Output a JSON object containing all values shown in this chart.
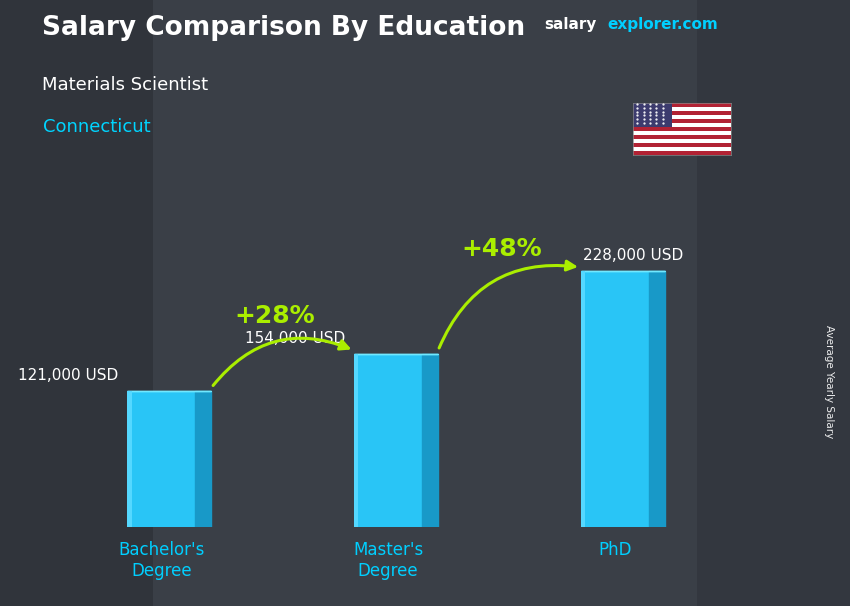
{
  "title": "Salary Comparison By Education",
  "subtitle": "Materials Scientist",
  "location": "Connecticut",
  "categories": [
    "Bachelor's\nDegree",
    "Master's\nDegree",
    "PhD"
  ],
  "values": [
    121000,
    154000,
    228000
  ],
  "value_labels": [
    "121,000 USD",
    "154,000 USD",
    "228,000 USD"
  ],
  "bar_color_front": "#29C5F6",
  "bar_color_left": "#55D8FF",
  "bar_color_right": "#1899C8",
  "bar_color_top": "#70E8FF",
  "bar_width": 0.3,
  "bar_depth": 0.07,
  "background_color": "#3a3f47",
  "title_color": "#FFFFFF",
  "subtitle_color": "#FFFFFF",
  "location_color": "#00D4FF",
  "value_label_color": "#FFFFFF",
  "ylabel": "Average Yearly Salary",
  "pct_labels": [
    "+28%",
    "+48%"
  ],
  "pct_color": "#AAEE00",
  "arrow_color": "#AAEE00",
  "brand_salary": "salary",
  "brand_explorer": "explorer",
  "brand_com": ".com",
  "brand_white": "#FFFFFF",
  "brand_cyan": "#00CFFF",
  "tick_color": "#00CFFF",
  "tick_fontsize": 12,
  "value_fontsize": 11,
  "ylim": [
    0,
    280000
  ],
  "bar_positions": [
    0,
    1,
    2
  ],
  "xlim": [
    -0.45,
    2.7
  ]
}
